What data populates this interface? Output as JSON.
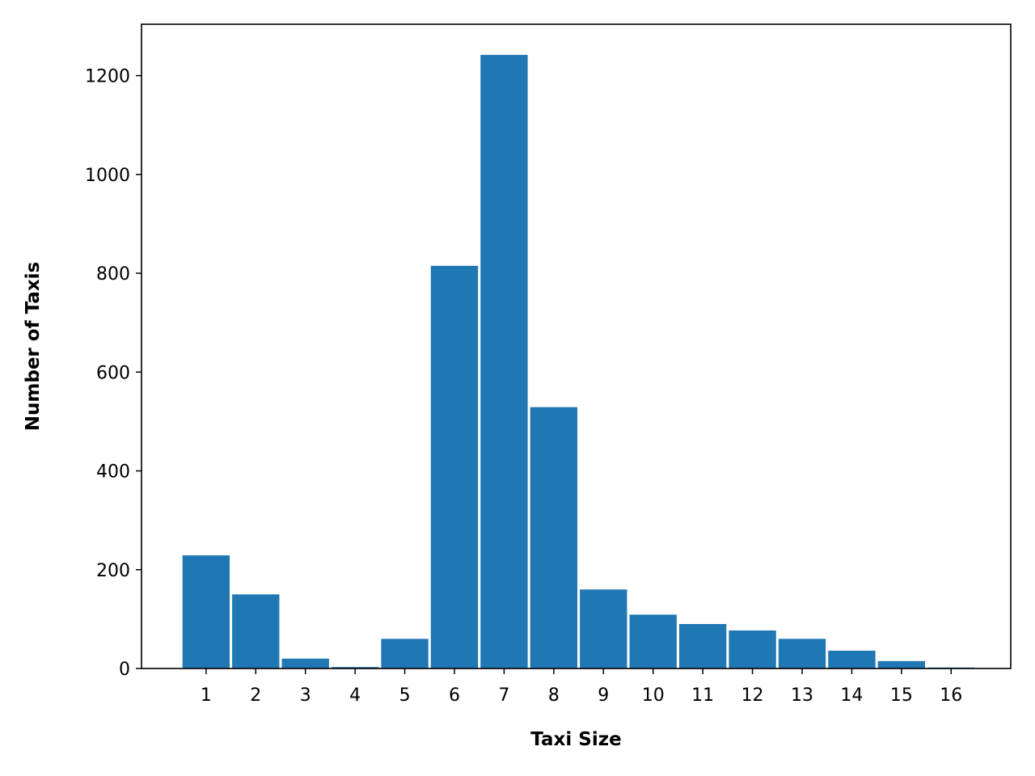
{
  "chart_data": {
    "type": "bar",
    "title": "",
    "xlabel": "Taxi Size",
    "ylabel": "Number of Taxis",
    "categories": [
      "1",
      "2",
      "3",
      "4",
      "5",
      "6",
      "7",
      "8",
      "9",
      "10",
      "11",
      "12",
      "13",
      "14",
      "15",
      "16"
    ],
    "values": [
      229,
      150,
      20,
      3,
      60,
      815,
      1242,
      529,
      160,
      109,
      90,
      77,
      60,
      36,
      15,
      2
    ],
    "xlim": [
      -0.3,
      17.2
    ],
    "ylim": [
      0,
      1304
    ],
    "yticks": [
      0,
      200,
      400,
      600,
      800,
      1000,
      1200
    ],
    "bar_color": "#1f77b4",
    "grid": false,
    "legend": "none"
  }
}
